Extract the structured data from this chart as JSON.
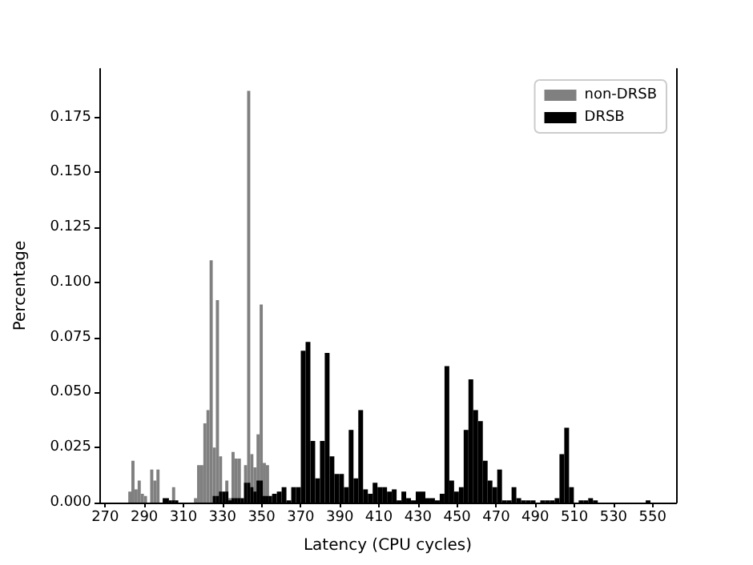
{
  "chart_data": {
    "type": "histogram",
    "xlabel": "Latency (CPU cycles)",
    "ylabel": "Percentage",
    "xlim": [
      267,
      562
    ],
    "xticks": [
      270,
      290,
      310,
      330,
      350,
      370,
      390,
      410,
      430,
      450,
      470,
      490,
      510,
      530,
      550
    ],
    "ylim": [
      0,
      0.197
    ],
    "yticks": [
      {
        "value": 0,
        "label": "0.000"
      },
      {
        "value": 0.025,
        "label": "0.025"
      },
      {
        "value": 0.05,
        "label": "0.050"
      },
      {
        "value": 0.075,
        "label": "0.075"
      },
      {
        "value": 0.1,
        "label": "0.100"
      },
      {
        "value": 0.125,
        "label": "0.125"
      },
      {
        "value": 0.15,
        "label": "0.150"
      },
      {
        "value": 0.175,
        "label": "0.175"
      }
    ],
    "legend": "top right",
    "grid": false,
    "bins": [
      281.8,
      283.4,
      285,
      286.6,
      288.2,
      289.8,
      291.4,
      293,
      294.6,
      296.2,
      297.8,
      299.4,
      301,
      302.6,
      304.2,
      305.8,
      307.4,
      315.4,
      317,
      318.6,
      320.2,
      321.8,
      323.4,
      325,
      326.6,
      328.2,
      329.8,
      331.4,
      333,
      334.6,
      336.2,
      337.8,
      339.4,
      341,
      342.6,
      344.2,
      345.8,
      347.4,
      349,
      350.6,
      352.2,
      353.8,
      355.35,
      357.8,
      360.25,
      362.7,
      365.15,
      367.6,
      370.05,
      372.5,
      374.95,
      377.4,
      379.85,
      382.3,
      384.75,
      387.2,
      389.65,
      392.1,
      394.55,
      397.0,
      399.45,
      401.9,
      404.35,
      406.8,
      409.25,
      411.7,
      414.15,
      416.6,
      419.05,
      421.5,
      423.95,
      426.4,
      428.85,
      431.3,
      433.75,
      436.2,
      438.65,
      441.1,
      443.55,
      446.0,
      448.45,
      450.9,
      453.35,
      455.8,
      458.25,
      460.7,
      463.15,
      465.6,
      468.05,
      470.5,
      472.95,
      475.4,
      477.85,
      480.3,
      482.75,
      485.2,
      487.65,
      490.1,
      492.55,
      495.0,
      497.45,
      499.9,
      502.35,
      504.8,
      507.25,
      509.7,
      512.15,
      514.6,
      517.05,
      519.5,
      521.95,
      546.45,
      548.9
    ],
    "series": [
      {
        "name": "non-DRSB",
        "color": "#808080",
        "values": [
          0.005,
          0.019,
          0.006,
          0.01,
          0.004,
          0.003,
          0,
          0.015,
          0.01,
          0.015,
          0,
          0,
          0,
          0,
          0.007,
          0,
          0,
          0.002,
          0.017,
          0.017,
          0.036,
          0.042,
          0.11,
          0.025,
          0.092,
          0.021,
          null,
          0.01,
          0.002,
          0.023,
          0.02,
          0.02,
          null,
          0.017,
          0.187,
          0.022,
          0.016,
          0.031,
          0.09,
          0.018,
          0.017,
          null,
          null,
          null,
          null,
          null,
          null,
          null,
          null,
          null,
          null,
          null,
          null,
          null,
          null,
          null,
          null,
          null,
          null,
          null,
          null,
          null,
          null,
          null,
          null,
          null,
          null,
          null,
          null,
          null,
          null,
          null,
          null,
          null,
          null,
          null,
          null,
          null,
          null,
          null,
          null,
          null,
          null,
          null,
          null,
          null,
          null,
          null,
          null,
          null,
          null,
          null,
          null,
          null,
          null,
          null,
          null,
          null,
          null,
          null,
          null,
          null,
          null,
          null,
          null,
          null,
          null,
          null,
          null,
          null,
          null,
          null
        ]
      },
      {
        "name": "DRSB",
        "color": "#000000",
        "values": [
          null,
          null,
          null,
          null,
          null,
          null,
          null,
          null,
          null,
          null,
          null,
          0.002,
          0.002,
          0.001,
          0.001,
          0.001,
          0,
          0,
          0,
          0,
          0,
          0,
          0,
          0.003,
          0.003,
          0.005,
          0.005,
          0.005,
          0.001,
          0.002,
          0.002,
          0.002,
          0.002,
          0.009,
          0.009,
          0.007,
          0.005,
          0.01,
          0.01,
          0.003,
          0.003,
          0.003,
          0.004,
          0.005,
          0.007,
          0.001,
          0.007,
          0.007,
          0.069,
          0.073,
          0.028,
          0.011,
          0.028,
          0.068,
          0.021,
          0.013,
          0.013,
          0.007,
          0.033,
          0.011,
          0.042,
          0.006,
          0.004,
          0.009,
          0.007,
          0.007,
          0.005,
          0.006,
          0.001,
          0.005,
          0.002,
          0.001,
          0.005,
          0.005,
          0.002,
          0.002,
          0.001,
          0.004,
          0.062,
          0.01,
          0.005,
          0.007,
          0.033,
          0.056,
          0.042,
          0.037,
          0.019,
          0.01,
          0.007,
          0.015,
          0.001,
          0.001,
          0.007,
          0.002,
          0.001,
          0.001,
          0.001,
          0,
          0.001,
          0.001,
          0.001,
          0.002,
          0.022,
          0.034,
          0.007,
          0,
          0.001,
          0.001,
          0.002,
          0.001,
          0,
          0.001
        ]
      }
    ]
  }
}
